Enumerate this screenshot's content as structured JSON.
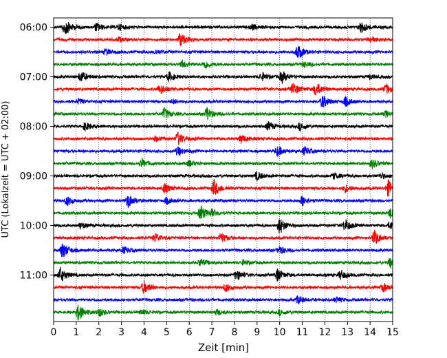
{
  "chart_data": {
    "type": "line",
    "subtype": "helicorder",
    "xlabel": "Zeit  [min]",
    "ylabel": "UTC (Lokalzeit = UTC + 02:00)",
    "xlim": [
      0,
      15
    ],
    "xticks": [
      0,
      1,
      2,
      3,
      4,
      5,
      6,
      7,
      8,
      9,
      10,
      11,
      12,
      13,
      14,
      15
    ],
    "ytick_labels": [
      "06:00",
      "07:00",
      "08:00",
      "09:00",
      "10:00",
      "11:00"
    ],
    "line_start_time": "06:00",
    "line_duration_min": 15,
    "line_count": 24,
    "grid": "vertical-dotted",
    "colors": [
      "#000000",
      "#ff0000",
      "#0000ff",
      "#008000"
    ],
    "traces": [
      {
        "start": "06:00",
        "color": "#000000",
        "events": [
          {
            "t": 0.5,
            "a": 1.0
          },
          {
            "t": 1.9,
            "a": 0.5
          },
          {
            "t": 2.9,
            "a": 0.35
          },
          {
            "t": 8.8,
            "a": 0.3
          },
          {
            "t": 13.6,
            "a": 0.7
          }
        ]
      },
      {
        "start": "06:15",
        "color": "#ff0000",
        "events": [
          {
            "t": 5.6,
            "a": 0.85
          },
          {
            "t": 2.9,
            "a": 0.25
          },
          {
            "t": 14.0,
            "a": 0.3
          }
        ]
      },
      {
        "start": "06:30",
        "color": "#0000ff",
        "events": [
          {
            "t": 2.3,
            "a": 0.4
          },
          {
            "t": 10.8,
            "a": 0.9
          },
          {
            "t": 4.5,
            "a": 0.25
          }
        ]
      },
      {
        "start": "06:45",
        "color": "#008000",
        "events": [
          {
            "t": 5.7,
            "a": 0.4
          },
          {
            "t": 6.7,
            "a": 0.5
          },
          {
            "t": 11.1,
            "a": 0.3
          }
        ]
      },
      {
        "start": "07:00",
        "color": "#000000",
        "events": [
          {
            "t": 1.2,
            "a": 0.65
          },
          {
            "t": 5.1,
            "a": 0.55
          },
          {
            "t": 9.2,
            "a": 0.5
          },
          {
            "t": 10.1,
            "a": 0.7
          },
          {
            "t": 14.0,
            "a": 0.25
          }
        ]
      },
      {
        "start": "07:15",
        "color": "#ff0000",
        "events": [
          {
            "t": 4.7,
            "a": 0.6
          },
          {
            "t": 10.6,
            "a": 0.75
          },
          {
            "t": 11.6,
            "a": 0.85
          },
          {
            "t": 14.7,
            "a": 0.6
          }
        ]
      },
      {
        "start": "07:30",
        "color": "#0000ff",
        "events": [
          {
            "t": 1.1,
            "a": 0.3
          },
          {
            "t": 11.9,
            "a": 0.75
          },
          {
            "t": 12.9,
            "a": 0.55
          },
          {
            "t": 5.3,
            "a": 0.25
          }
        ]
      },
      {
        "start": "07:45",
        "color": "#008000",
        "events": [
          {
            "t": 4.9,
            "a": 0.65
          },
          {
            "t": 6.8,
            "a": 0.75
          },
          {
            "t": 14.7,
            "a": 0.35
          }
        ]
      },
      {
        "start": "08:00",
        "color": "#000000",
        "events": [
          {
            "t": 1.4,
            "a": 0.5
          },
          {
            "t": 9.5,
            "a": 0.5
          },
          {
            "t": 10.9,
            "a": 0.45
          }
        ]
      },
      {
        "start": "08:15",
        "color": "#ff0000",
        "events": [
          {
            "t": 5.5,
            "a": 0.8
          },
          {
            "t": 8.3,
            "a": 0.5
          },
          {
            "t": 4.5,
            "a": 0.3
          }
        ]
      },
      {
        "start": "08:30",
        "color": "#0000ff",
        "events": [
          {
            "t": 5.5,
            "a": 0.55
          },
          {
            "t": 9.9,
            "a": 0.6
          },
          {
            "t": 11.1,
            "a": 0.5
          }
        ]
      },
      {
        "start": "08:45",
        "color": "#008000",
        "events": [
          {
            "t": 3.9,
            "a": 0.5
          },
          {
            "t": 6.0,
            "a": 0.35
          },
          {
            "t": 14.1,
            "a": 0.55
          }
        ]
      },
      {
        "start": "09:00",
        "color": "#000000",
        "events": [
          {
            "t": 9.0,
            "a": 0.5
          },
          {
            "t": 12.4,
            "a": 0.35
          },
          {
            "t": 14.5,
            "a": 0.3
          }
        ]
      },
      {
        "start": "09:15",
        "color": "#ff0000",
        "events": [
          {
            "t": 4.9,
            "a": 0.55
          },
          {
            "t": 7.1,
            "a": 1.0
          },
          {
            "t": 12.9,
            "a": 0.45
          },
          {
            "t": 14.8,
            "a": 1.0
          }
        ]
      },
      {
        "start": "09:30",
        "color": "#0000ff",
        "events": [
          {
            "t": 0.6,
            "a": 0.55
          },
          {
            "t": 3.3,
            "a": 0.8
          },
          {
            "t": 5.0,
            "a": 0.35
          },
          {
            "t": 11.0,
            "a": 0.6
          }
        ]
      },
      {
        "start": "09:45",
        "color": "#008000",
        "events": [
          {
            "t": 6.5,
            "a": 0.85
          },
          {
            "t": 7.0,
            "a": 0.4
          },
          {
            "t": 14.9,
            "a": 0.6
          }
        ]
      },
      {
        "start": "10:00",
        "color": "#000000",
        "events": [
          {
            "t": 1.2,
            "a": 0.35
          },
          {
            "t": 10.0,
            "a": 1.0
          },
          {
            "t": 12.9,
            "a": 0.75
          },
          {
            "t": 14.9,
            "a": 0.5
          }
        ]
      },
      {
        "start": "10:15",
        "color": "#ff0000",
        "events": [
          {
            "t": 4.5,
            "a": 0.55
          },
          {
            "t": 7.4,
            "a": 0.6
          },
          {
            "t": 14.2,
            "a": 0.9
          }
        ]
      },
      {
        "start": "10:30",
        "color": "#0000ff",
        "events": [
          {
            "t": 0.4,
            "a": 1.0
          },
          {
            "t": 3.1,
            "a": 0.4
          },
          {
            "t": 10.0,
            "a": 0.5
          }
        ]
      },
      {
        "start": "10:45",
        "color": "#008000",
        "events": [
          {
            "t": 6.5,
            "a": 0.45
          },
          {
            "t": 8.4,
            "a": 0.3
          },
          {
            "t": 14.9,
            "a": 0.6
          }
        ]
      },
      {
        "start": "11:00",
        "color": "#000000",
        "events": [
          {
            "t": 0.3,
            "a": 0.9
          },
          {
            "t": 8.1,
            "a": 0.6
          },
          {
            "t": 9.9,
            "a": 0.75
          },
          {
            "t": 12.7,
            "a": 0.55
          }
        ]
      },
      {
        "start": "11:15",
        "color": "#ff0000",
        "events": [
          {
            "t": 4.0,
            "a": 0.8
          },
          {
            "t": 7.6,
            "a": 0.45
          },
          {
            "t": 14.6,
            "a": 0.5
          }
        ]
      },
      {
        "start": "11:30",
        "color": "#0000ff",
        "events": [
          {
            "t": 10.8,
            "a": 0.5
          },
          {
            "t": 12.5,
            "a": 0.3
          }
        ]
      },
      {
        "start": "11:45",
        "color": "#008000",
        "events": [
          {
            "t": 1.1,
            "a": 1.0
          },
          {
            "t": 2.0,
            "a": 0.5
          },
          {
            "t": 3.9,
            "a": 0.3
          },
          {
            "t": 7.2,
            "a": 0.3
          },
          {
            "t": 10.0,
            "a": 0.3
          }
        ]
      }
    ]
  }
}
